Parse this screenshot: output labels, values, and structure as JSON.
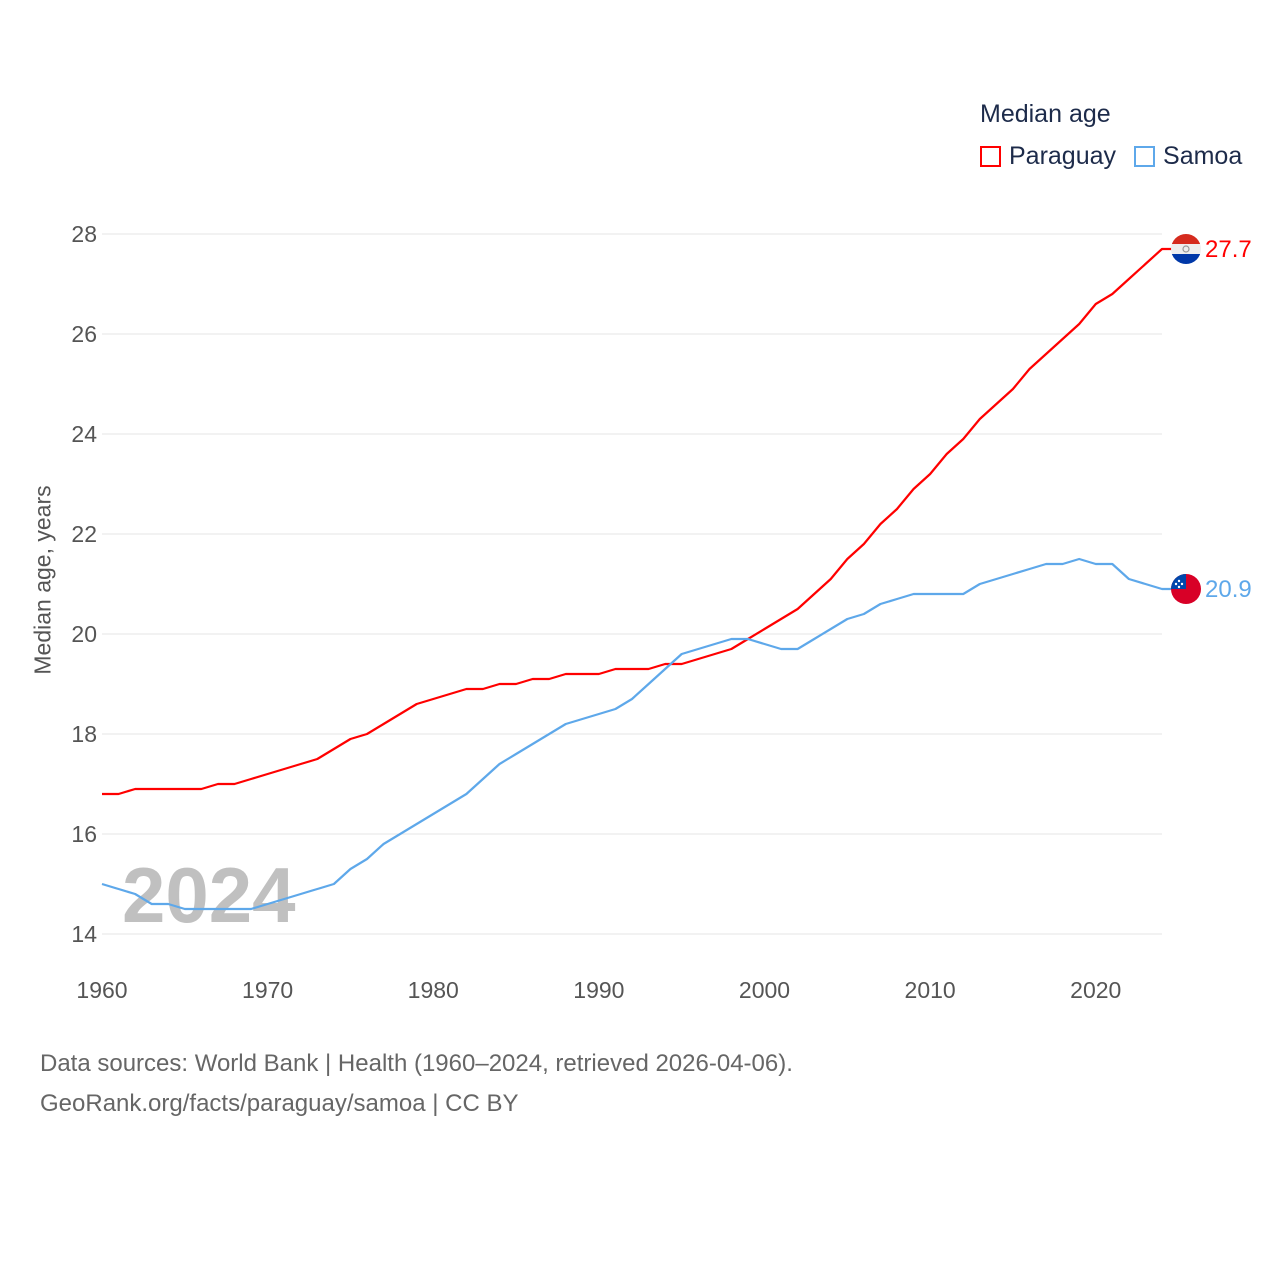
{
  "chart_data": {
    "type": "line",
    "title": "Median age",
    "xlabel": "",
    "ylabel": "Median age, years",
    "xlim": [
      1960,
      2024
    ],
    "ylim": [
      14,
      28
    ],
    "yticks": [
      14,
      16,
      18,
      20,
      22,
      24,
      26,
      28
    ],
    "xticks": [
      1960,
      1970,
      1980,
      1990,
      2000,
      2010,
      2020
    ],
    "grid": true,
    "legend_placement": "top-right",
    "watermark_year": "2024",
    "x": [
      1960,
      1961,
      1962,
      1963,
      1964,
      1965,
      1966,
      1967,
      1968,
      1969,
      1970,
      1971,
      1972,
      1973,
      1974,
      1975,
      1976,
      1977,
      1978,
      1979,
      1980,
      1981,
      1982,
      1983,
      1984,
      1985,
      1986,
      1987,
      1988,
      1989,
      1990,
      1991,
      1992,
      1993,
      1994,
      1995,
      1996,
      1997,
      1998,
      1999,
      2000,
      2001,
      2002,
      2003,
      2004,
      2005,
      2006,
      2007,
      2008,
      2009,
      2010,
      2011,
      2012,
      2013,
      2014,
      2015,
      2016,
      2017,
      2018,
      2019,
      2020,
      2021,
      2022,
      2023,
      2024
    ],
    "series": [
      {
        "name": "Paraguay",
        "color": "#ff0000",
        "end_label": "27.7",
        "values": [
          16.8,
          16.8,
          16.9,
          16.9,
          16.9,
          16.9,
          16.9,
          17.0,
          17.0,
          17.1,
          17.2,
          17.3,
          17.4,
          17.5,
          17.7,
          17.9,
          18.0,
          18.2,
          18.4,
          18.6,
          18.7,
          18.8,
          18.9,
          18.9,
          19.0,
          19.0,
          19.1,
          19.1,
          19.2,
          19.2,
          19.2,
          19.3,
          19.3,
          19.3,
          19.4,
          19.4,
          19.5,
          19.6,
          19.7,
          19.9,
          20.1,
          20.3,
          20.5,
          20.8,
          21.1,
          21.5,
          21.8,
          22.2,
          22.5,
          22.9,
          23.2,
          23.6,
          23.9,
          24.3,
          24.6,
          24.9,
          25.3,
          25.6,
          25.9,
          26.2,
          26.6,
          26.8,
          27.1,
          27.4,
          27.7
        ]
      },
      {
        "name": "Samoa",
        "color": "#5ea8ea",
        "end_label": "20.9",
        "values": [
          15.0,
          14.9,
          14.8,
          14.6,
          14.6,
          14.5,
          14.5,
          14.5,
          14.5,
          14.5,
          14.6,
          14.7,
          14.8,
          14.9,
          15.0,
          15.3,
          15.5,
          15.8,
          16.0,
          16.2,
          16.4,
          16.6,
          16.8,
          17.1,
          17.4,
          17.6,
          17.8,
          18.0,
          18.2,
          18.3,
          18.4,
          18.5,
          18.7,
          19.0,
          19.3,
          19.6,
          19.7,
          19.8,
          19.9,
          19.9,
          19.8,
          19.7,
          19.7,
          19.9,
          20.1,
          20.3,
          20.4,
          20.6,
          20.7,
          20.8,
          20.8,
          20.8,
          20.8,
          21.0,
          21.1,
          21.2,
          21.3,
          21.4,
          21.4,
          21.5,
          21.4,
          21.4,
          21.1,
          21.0,
          20.9
        ]
      }
    ]
  },
  "legend": {
    "title": "Median age",
    "items": [
      "Paraguay",
      "Samoa"
    ]
  },
  "footer": {
    "line1": "Data sources: World Bank | Health (1960–2024, retrieved 2026-04-06).",
    "line2": "GeoRank.org/facts/paraguay/samoa | CC BY"
  }
}
